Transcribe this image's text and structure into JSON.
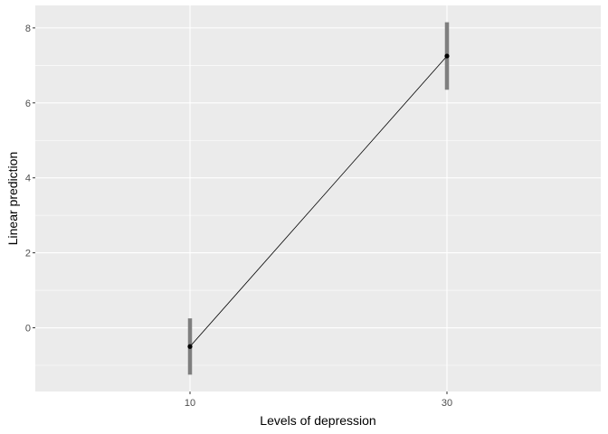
{
  "chart_data": {
    "type": "line",
    "title": "",
    "xlabel": "Levels of depression",
    "ylabel": "Linear prediction",
    "grid": true,
    "legend": "none",
    "x_categories": [
      "10",
      "30"
    ],
    "x_tick_labels": [
      "10",
      "30"
    ],
    "y_ticks": [
      0,
      2,
      4,
      6,
      8
    ],
    "y_tick_labels": [
      "0",
      "2",
      "4",
      "6",
      "8"
    ],
    "ylim": [
      -1.7,
      8.6
    ],
    "series": [
      {
        "x": [
          "10",
          "30"
        ],
        "y": [
          -0.5,
          7.25
        ],
        "ci_lower": [
          -1.25,
          6.35
        ],
        "ci_upper": [
          0.25,
          8.15
        ]
      }
    ],
    "colors": {
      "panel": "#ebebeb",
      "grid_major": "#ffffff",
      "line": "#000000",
      "point": "#000000",
      "errorbar": "#7f7f7f"
    }
  }
}
